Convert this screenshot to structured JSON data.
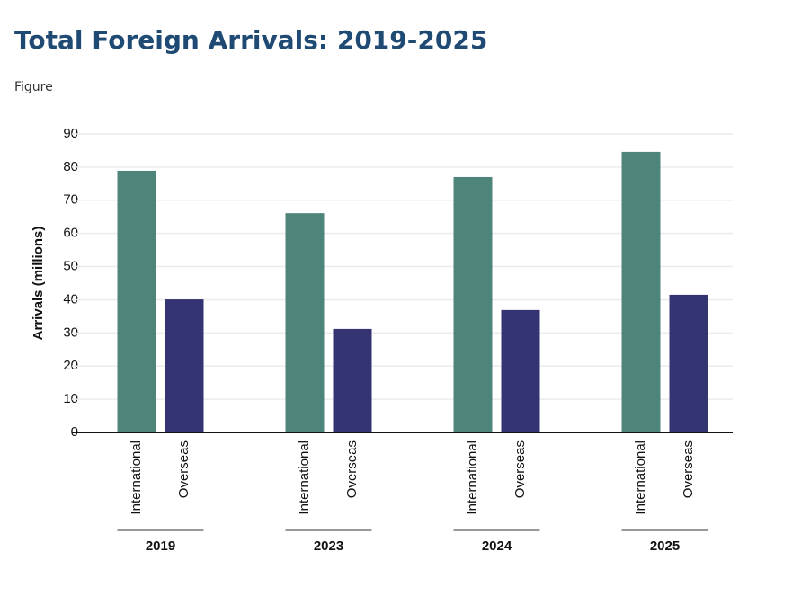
{
  "header": {
    "title": "Total Foreign Arrivals: 2019-2025",
    "label": "Figure"
  },
  "chart_data": {
    "type": "bar",
    "categories": [
      "2019",
      "2023",
      "2024",
      "2025"
    ],
    "series": [
      {
        "name": "International",
        "color": "#4e8479",
        "values": [
          78.9,
          66.1,
          77.0,
          84.6
        ]
      },
      {
        "name": "Overseas",
        "color": "#343472",
        "values": [
          40.1,
          31.2,
          36.9,
          41.5
        ]
      }
    ],
    "y_label": "Arrivals (millions)",
    "ylim": [
      0,
      90
    ],
    "yticks": [
      0,
      10,
      20,
      30,
      40,
      50,
      60,
      70,
      80,
      90
    ],
    "grid": true
  }
}
